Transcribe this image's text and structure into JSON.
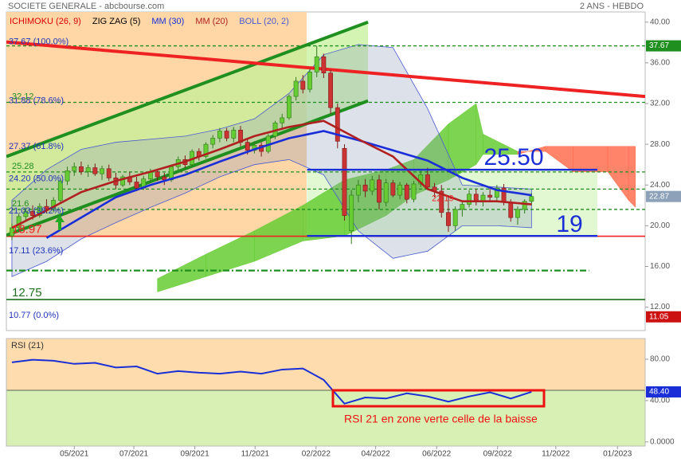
{
  "chart_data": {
    "type": "candlestick",
    "title": "SOCIETE GENERALE - abcbourse.com",
    "subtitle": "2 ANS - HEBDO",
    "xlim": [
      -0.8,
      91.4
    ],
    "xticks": [
      {
        "value": 9,
        "label": "05/2021"
      },
      {
        "value": 17.6,
        "label": "07/2021"
      },
      {
        "value": 26.4,
        "label": "09/2021"
      },
      {
        "value": 35.1,
        "label": "11/2021"
      },
      {
        "value": 43.9,
        "label": "02/2022"
      },
      {
        "value": 52.5,
        "label": "04/2022"
      },
      {
        "value": 61.3,
        "label": "06/2022"
      },
      {
        "value": 70.1,
        "label": "09/2022"
      },
      {
        "value": 78.5,
        "label": "11/2022"
      },
      {
        "value": 87.4,
        "label": "01/2023"
      }
    ],
    "ylim": [
      9.7,
      41
    ],
    "yticks": [
      {
        "value": 40,
        "label": "40.00"
      },
      {
        "value": 36,
        "label": "36.00"
      },
      {
        "value": 32,
        "label": "32.00"
      },
      {
        "value": 28,
        "label": "28.00"
      },
      {
        "value": 24,
        "label": "24.00"
      },
      {
        "value": 20,
        "label": "20.00"
      },
      {
        "value": 16,
        "label": "16.00"
      },
      {
        "value": 12,
        "label": "12.00"
      }
    ],
    "up_color": "#66cc33",
    "down_color": "#cc3333",
    "candles": [
      [
        19.0,
        20.2,
        18.6,
        19.8
      ],
      [
        19.8,
        21.2,
        19.5,
        20.9
      ],
      [
        20.9,
        21.8,
        20.4,
        21.4
      ],
      [
        21.4,
        22.0,
        20.6,
        21.0
      ],
      [
        21.0,
        22.2,
        20.8,
        21.9
      ],
      [
        21.9,
        22.6,
        21.2,
        21.6
      ],
      [
        21.6,
        22.8,
        21.3,
        22.5
      ],
      [
        22.5,
        24.6,
        22.3,
        24.4
      ],
      [
        24.4,
        25.8,
        24.0,
        25.4
      ],
      [
        25.4,
        26.2,
        24.9,
        25.8
      ],
      [
        25.8,
        26.3,
        25.0,
        25.3
      ],
      [
        25.3,
        26.0,
        24.8,
        25.7
      ],
      [
        25.7,
        26.1,
        24.9,
        25.1
      ],
      [
        25.1,
        25.9,
        24.5,
        25.6
      ],
      [
        25.6,
        26.0,
        24.4,
        24.7
      ],
      [
        24.7,
        25.2,
        23.6,
        24.0
      ],
      [
        24.0,
        25.0,
        23.8,
        24.8
      ],
      [
        24.8,
        25.3,
        24.0,
        24.3
      ],
      [
        24.3,
        24.8,
        23.4,
        23.7
      ],
      [
        23.7,
        24.9,
        23.5,
        24.6
      ],
      [
        24.6,
        25.6,
        24.2,
        25.3
      ],
      [
        25.3,
        25.6,
        24.4,
        24.8
      ],
      [
        24.8,
        25.2,
        24.0,
        24.5
      ],
      [
        24.5,
        26.0,
        24.3,
        25.8
      ],
      [
        25.8,
        26.8,
        25.5,
        26.5
      ],
      [
        26.5,
        26.9,
        25.7,
        26.0
      ],
      [
        26.0,
        27.5,
        25.8,
        27.3
      ],
      [
        27.3,
        27.6,
        26.4,
        26.8
      ],
      [
        26.8,
        28.2,
        26.6,
        28.0
      ],
      [
        28.0,
        28.9,
        27.6,
        28.6
      ],
      [
        28.6,
        29.6,
        28.2,
        29.3
      ],
      [
        29.3,
        29.6,
        28.3,
        28.6
      ],
      [
        28.6,
        29.7,
        28.2,
        29.4
      ],
      [
        29.4,
        29.8,
        27.8,
        28.2
      ],
      [
        28.2,
        28.6,
        27.0,
        27.4
      ],
      [
        27.4,
        28.3,
        27.1,
        27.9
      ],
      [
        27.9,
        28.2,
        26.8,
        27.3
      ],
      [
        27.3,
        29.0,
        27.1,
        28.8
      ],
      [
        28.8,
        30.3,
        28.5,
        30.1
      ],
      [
        30.1,
        31.0,
        29.4,
        30.6
      ],
      [
        30.6,
        32.9,
        30.4,
        32.7
      ],
      [
        32.7,
        34.6,
        32.3,
        34.2
      ],
      [
        34.2,
        34.8,
        33.0,
        33.4
      ],
      [
        33.4,
        35.4,
        33.1,
        35.1
      ],
      [
        35.1,
        37.67,
        34.6,
        36.6
      ],
      [
        36.6,
        36.9,
        34.5,
        35.0
      ],
      [
        35.0,
        35.3,
        31.0,
        31.6
      ],
      [
        31.6,
        32.0,
        27.6,
        28.3
      ],
      [
        27.6,
        28.0,
        20.5,
        21.0
      ],
      [
        19.5,
        23.5,
        18.2,
        23.0
      ],
      [
        23.0,
        24.5,
        22.3,
        24.0
      ],
      [
        24.0,
        24.6,
        22.8,
        23.4
      ],
      [
        23.4,
        24.9,
        23.0,
        24.5
      ],
      [
        24.5,
        25.0,
        21.6,
        22.3
      ],
      [
        22.3,
        24.6,
        21.9,
        24.2
      ],
      [
        24.2,
        24.5,
        22.8,
        23.0
      ],
      [
        23.0,
        24.3,
        22.6,
        24.0
      ],
      [
        24.0,
        24.2,
        22.2,
        22.6
      ],
      [
        22.6,
        24.4,
        22.3,
        24.1
      ],
      [
        24.1,
        25.4,
        23.8,
        25.0
      ],
      [
        25.0,
        25.7,
        23.5,
        23.8
      ],
      [
        23.8,
        24.2,
        22.8,
        23.4
      ],
      [
        23.4,
        24.0,
        20.8,
        21.3
      ],
      [
        21.3,
        22.9,
        19.4,
        20.0
      ],
      [
        20.0,
        21.9,
        19.5,
        21.6
      ],
      [
        21.6,
        22.4,
        20.9,
        22.1
      ],
      [
        22.1,
        23.5,
        21.8,
        23.1
      ],
      [
        23.1,
        23.6,
        22.0,
        22.4
      ],
      [
        22.4,
        23.3,
        21.9,
        23.0
      ],
      [
        23.0,
        23.8,
        22.4,
        22.8
      ],
      [
        22.8,
        24.0,
        22.5,
        23.7
      ],
      [
        23.7,
        24.1,
        22.0,
        22.3
      ],
      [
        22.3,
        22.6,
        20.4,
        20.8
      ],
      [
        20.8,
        21.9,
        20.1,
        21.6
      ],
      [
        21.6,
        22.6,
        21.2,
        22.4
      ],
      [
        22.4,
        23.2,
        22.0,
        22.87
      ]
    ],
    "indicators": [
      {
        "name": "ICHIMOKU (26, 9)",
        "color": "#dd0000",
        "up_fill": "#66cc33",
        "down_fill": "#ff6f4f",
        "x": [
          21,
          28,
          35,
          42,
          48,
          54,
          58,
          63,
          67,
          68,
          73,
          77,
          81,
          86,
          89,
          90
        ],
        "span_a": [
          14.8,
          17.2,
          19.5,
          22.0,
          24.5,
          25.5,
          26.5,
          30.0,
          32.0,
          29.0,
          27.3,
          27.3,
          25.3,
          25.3,
          22.5,
          21.8
        ],
        "span_b": [
          13.5,
          15.0,
          16.5,
          18.5,
          19.0,
          21.0,
          23.0,
          24.5,
          26.0,
          27.0,
          27.0,
          27.8,
          27.8,
          27.8,
          27.8,
          27.8
        ]
      },
      {
        "name": "ZIG ZAG (5)",
        "color": "#000000"
      },
      {
        "name": "MM (30)",
        "color": "#1a2ed8",
        "x": [
          5,
          10,
          15,
          20,
          25,
          30,
          35,
          40,
          45,
          50,
          55,
          60,
          65,
          70,
          75
        ],
        "values": [
          18.8,
          20.8,
          22.8,
          24.0,
          25.0,
          26.3,
          27.5,
          28.6,
          29.3,
          28.4,
          27.4,
          26.4,
          24.7,
          23.5,
          23.0
        ]
      },
      {
        "name": "MM (20)",
        "color": "#b02020",
        "x": [
          0,
          5,
          10,
          15,
          20,
          25,
          30,
          35,
          40,
          45,
          50,
          55,
          60,
          65,
          70,
          75
        ],
        "values": [
          19.8,
          21.5,
          23.3,
          24.4,
          25.3,
          26.3,
          27.5,
          28.8,
          29.7,
          30.3,
          28.5,
          26.8,
          23.6,
          22.4,
          22.4,
          22.1
        ]
      },
      {
        "name": "BOLL (20, 2)",
        "color": "#4a5ad0",
        "x": [
          0,
          5,
          10,
          15,
          20,
          25,
          30,
          35,
          40,
          45,
          50,
          55,
          60,
          65,
          70,
          75
        ],
        "upper": [
          22.5,
          25.5,
          27.5,
          28.2,
          28.5,
          28.8,
          29.5,
          30.5,
          33.0,
          36.8,
          37.8,
          37.5,
          31.5,
          24.0,
          23.8,
          23.6
        ],
        "lower": [
          15.0,
          16.5,
          18.7,
          20.3,
          21.8,
          23.2,
          24.8,
          26.0,
          26.5,
          25.0,
          19.5,
          16.8,
          17.5,
          20.0,
          20.0,
          19.8
        ]
      }
    ],
    "trendlines": [
      {
        "color": "#1f8f1f",
        "from": [
          -0.8,
          26.8
        ],
        "to": [
          51.4,
          40.0
        ]
      },
      {
        "color": "#1f8f1f",
        "from": [
          -0.8,
          19.06
        ],
        "to": [
          51.4,
          32.27
        ]
      },
      {
        "color": "#ee2222",
        "from": [
          -0.8,
          38.05
        ],
        "to": [
          91.4,
          32.7
        ]
      }
    ],
    "levels": [
      {
        "value": 37.67,
        "style": "dashed",
        "color": "#1f8f1f"
      },
      {
        "value": 32.12,
        "label": "32.12",
        "style": "dashed",
        "color": "#1f8f1f"
      },
      {
        "value": 25.28,
        "label": "25.28",
        "style": "dashed",
        "color": "#1f8f1f"
      },
      {
        "value": 23.6,
        "style": "dashed",
        "color": "#1f8f1f"
      },
      {
        "value": 21.6,
        "label": "21.6",
        "style": "dashed",
        "color": "#1f8f1f"
      },
      {
        "value": 18.97,
        "label": "18.97",
        "style": "solid",
        "color": "#ee2222"
      },
      {
        "value": 15.6,
        "style": "dashdot",
        "color": "#1f8f1f",
        "end": 83.3
      },
      {
        "value": 12.75,
        "label": "12.75",
        "style": "solid",
        "color": "#1f6f1f"
      }
    ],
    "fibonacci": [
      {
        "value": 37.67,
        "label": "37.67 (100.0%)"
      },
      {
        "value": 31.88,
        "label": "31.88 (78.6%)"
      },
      {
        "value": 27.37,
        "label": "27.37 (61.8%)"
      },
      {
        "value": 24.2,
        "label": "24.20 (50.0%)"
      },
      {
        "value": 21.03,
        "label": "21.03 (38.2%)"
      },
      {
        "value": 17.11,
        "label": "17.11 (23.6%)"
      },
      {
        "value": 10.77,
        "label": "10.77 (0.0%)"
      }
    ],
    "box": {
      "x": [
        42.6,
        84.5
      ],
      "top": {
        "value": 25.5,
        "label": "25.50"
      },
      "bottom": 19,
      "color": "#1a2ed8"
    },
    "annotations": [
      {
        "x": 60.6,
        "value": 22.19,
        "color": "#ee2222"
      }
    ],
    "badges": [
      {
        "value": 37.67,
        "color": "#1f8f1f"
      },
      {
        "value": 22.87,
        "color": "#8da2b8"
      },
      {
        "value": 11.05,
        "color": "#cc1111"
      }
    ],
    "rsi": {
      "name": "RSI (21)",
      "color": "#1a2ed8",
      "ylim": [
        -4,
        100
      ],
      "yticks": [
        {
          "value": 80,
          "label": "80.00"
        },
        {
          "value": 40,
          "label": "40.00"
        },
        {
          "value": 0,
          "label": "0.0000"
        }
      ],
      "x": [
        0,
        3,
        6,
        9,
        12,
        15,
        18,
        21,
        24,
        27,
        30,
        33,
        36,
        39,
        42,
        45,
        48,
        51,
        54,
        57,
        60,
        63,
        66,
        69,
        72,
        75
      ],
      "values": [
        77,
        79.5,
        78.5,
        75.5,
        76.5,
        72,
        73,
        66,
        68.5,
        67,
        66,
        68,
        66,
        70,
        71,
        60,
        37,
        43,
        42,
        47,
        44,
        39,
        44,
        48,
        42,
        48.4
      ],
      "last": {
        "value": 48.4,
        "label": "48.40"
      },
      "annotation": "RSI 21 en zone verte celle de la baisse"
    }
  }
}
